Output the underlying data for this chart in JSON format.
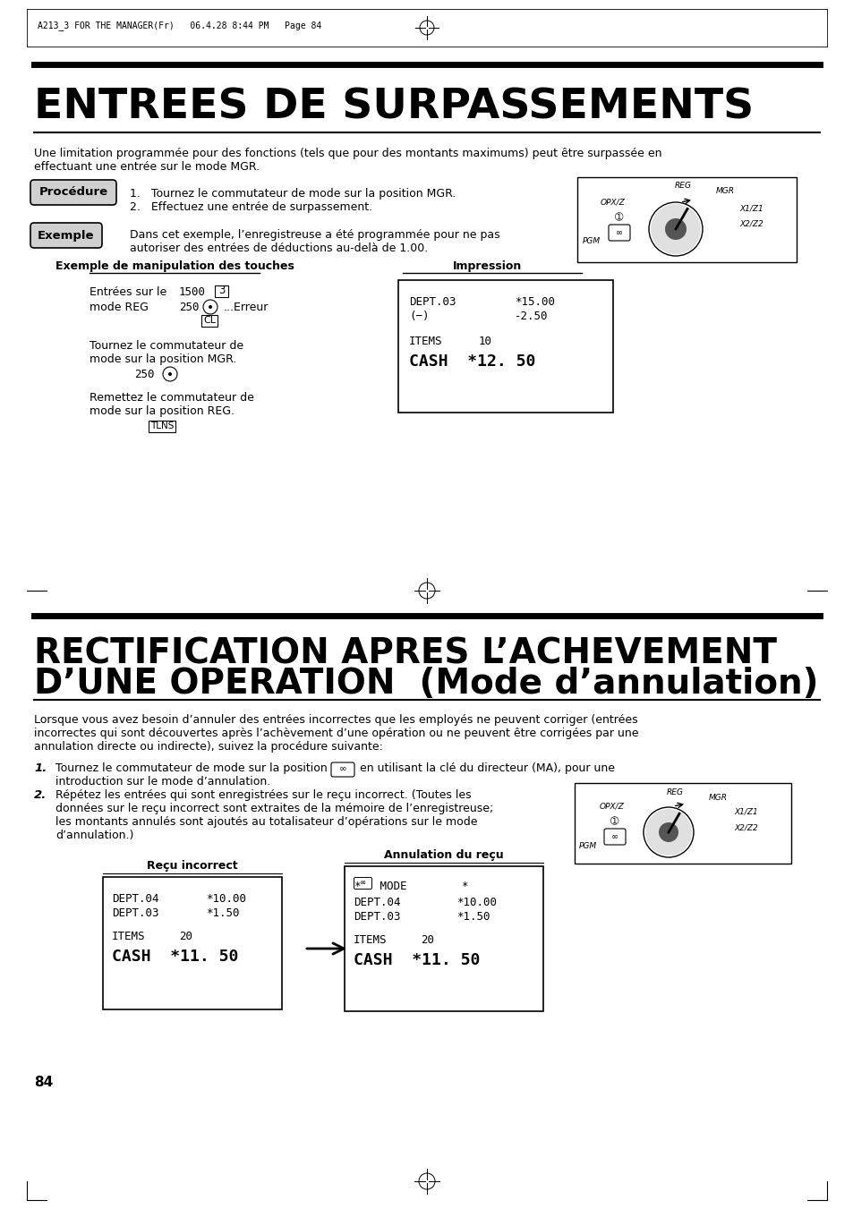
{
  "bg_color": "#ffffff",
  "header_text": "A213_3 FOR THE MANAGER(Fr)   06.4.28 8:44 PM   Page 84",
  "title1": "ENTREES DE SURPASSEMENTS",
  "subtitle1": "Une limitation programmée pour des fonctions (tels que pour des montants maximums) peut être surpassée en effectuant une entrée sur le mode MGR.",
  "procedure_label": "Procédure",
  "step1": "1.   Tournez le commutateur de mode sur la position MGR.",
  "step2": "2.   Effectuez une entrée de surpassement.",
  "exemple_label": "Exemple",
  "exemple_text1": "Dans cet exemple, l’enregistreuse a été programmée pour ne pas",
  "exemple_text2": "autoriser des entrées de déductions au-delà de 1.00.",
  "col1_header": "Exemple de manipulation des touches",
  "col2_header": "Impression",
  "title2_line1": "RECTIFICATION APRES L’ACHEVEMENT",
  "title2_line2": "D’UNE OPERATION  (Mode d’annulation)",
  "section2_intro1": "Lorsque vous avez besoin d’annuler des entrées incorrectes que les employés ne peuvent corriger (entrées",
  "section2_intro2": "incorrectes qui sont découvertes après l’achèvement d’une opération ou ne peuvent être corrigées par une",
  "section2_intro3": "annulation directe ou indirecte), suivez la procédure suivante:",
  "s2step1a": "Tournez le commutateur de mode sur la position",
  "s2step1b": "en utilisant la clé du directeur (MA), pour une",
  "s2step1c": "introduction sur le mode d’annulation.",
  "s2step2a": "Répétez les entrées qui sont enregistrées sur le reçu incorrect. (Toutes les",
  "s2step2b": "données sur le reçu incorrect sont extraites de la mémoire de l’enregistreuse;",
  "s2step2c": "les montants annulés sont ajoutés au totalisateur d’opérations sur le mode",
  "s2step2d": "d’annulation.)",
  "recu_incorrect_header": "Reçu incorrect",
  "annulation_header": "Annulation du reçu",
  "page_number": "84"
}
